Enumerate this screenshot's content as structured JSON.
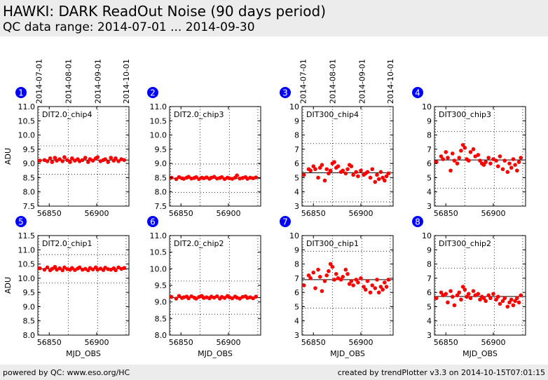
{
  "header": {
    "title": "HAWKI: DARK ReadOut Noise (90 days period)",
    "subtitle": "QC data range: 2014-07-01 ... 2014-09-30"
  },
  "footer": {
    "left": "powered by QC: www.eso.org/HC",
    "right": "created by trendPlotter v3.3 on 2014-10-15T07:01:15"
  },
  "colors": {
    "points": "#ff0000",
    "background": "#ffffff",
    "bands": "#ececec",
    "markers": "#0000ff"
  },
  "chart_data": {
    "type": "scatter",
    "xlabel": "MJD_OBS",
    "ylabel": "ADU",
    "xlim": [
      56838,
      56934
    ],
    "xticks": [
      56850,
      56900
    ],
    "date_ticks": [
      {
        "label": "2014-07-01",
        "x": 56839
      },
      {
        "label": "2014-08-01",
        "x": 56870
      },
      {
        "label": "2014-09-01",
        "x": 56901
      },
      {
        "label": "2014-10-01",
        "x": 56931
      }
    ],
    "panels": [
      {
        "number": "1",
        "label": "DIT2.0_chip4",
        "ylim": [
          7.5,
          11.0
        ],
        "yticks": [
          7.5,
          8.0,
          8.5,
          9.0,
          9.5,
          10.0,
          10.5,
          11.0
        ],
        "mean": 9.12,
        "dotted": [
          8.62,
          9.62
        ],
        "x": [
          56840,
          56845,
          56848,
          56851,
          56853,
          56856,
          56858,
          56861,
          56864,
          56866,
          56869,
          56872,
          56874,
          56877,
          56880,
          56882,
          56885,
          56888,
          56891,
          56893,
          56896,
          56899,
          56901,
          56904,
          56907,
          56909,
          56912,
          56915,
          56918,
          56920,
          56923,
          56926,
          56929
        ],
        "y": [
          9.1,
          9.12,
          9.08,
          9.18,
          9.05,
          9.2,
          9.1,
          9.15,
          9.08,
          9.22,
          9.12,
          9.05,
          9.18,
          9.1,
          9.15,
          9.08,
          9.12,
          9.2,
          9.05,
          9.15,
          9.1,
          9.18,
          9.22,
          9.08,
          9.12,
          9.15,
          9.05,
          9.2,
          9.1,
          9.18,
          9.08,
          9.15,
          9.12
        ]
      },
      {
        "number": "2",
        "label": "DIT2.0_chip3",
        "ylim": [
          7.5,
          11.0
        ],
        "yticks": [
          7.5,
          8.0,
          8.5,
          9.0,
          9.5,
          10.0,
          10.5,
          11.0
        ],
        "mean": 8.48,
        "dotted": [
          7.98,
          8.98
        ],
        "x": [
          56840,
          56845,
          56848,
          56851,
          56853,
          56856,
          56858,
          56861,
          56864,
          56866,
          56869,
          56872,
          56874,
          56877,
          56880,
          56882,
          56885,
          56888,
          56891,
          56893,
          56896,
          56899,
          56901,
          56904,
          56907,
          56909,
          56912,
          56915,
          56918,
          56920,
          56923,
          56926,
          56929
        ],
        "y": [
          8.5,
          8.45,
          8.52,
          8.48,
          8.46,
          8.5,
          8.53,
          8.47,
          8.49,
          8.52,
          8.45,
          8.5,
          8.48,
          8.51,
          8.46,
          8.5,
          8.53,
          8.47,
          8.49,
          8.52,
          8.45,
          8.5,
          8.48,
          8.46,
          8.5,
          8.58,
          8.47,
          8.49,
          8.52,
          8.46,
          8.5,
          8.48,
          8.51
        ]
      },
      {
        "number": "3",
        "label": "DIT300_chip4",
        "ylim": [
          3.0,
          10.0
        ],
        "yticks": [
          3,
          4,
          5,
          6,
          7,
          8,
          9,
          10
        ],
        "mean": 5.35,
        "dotted": [
          3.3,
          7.4
        ],
        "x": [
          56840,
          56845,
          56847,
          56850,
          56852,
          56855,
          56857,
          56859,
          56862,
          56864,
          56866,
          56868,
          56870,
          56872,
          56874,
          56876,
          56879,
          56881,
          56884,
          56886,
          56888,
          56890,
          56892,
          56895,
          56897,
          56900,
          56903,
          56905,
          56907,
          56910,
          56912,
          56915,
          56917,
          56919,
          56921,
          56923,
          56925,
          56927,
          56929
        ],
        "y": [
          5.2,
          5.6,
          5.5,
          5.8,
          5.6,
          5.0,
          5.7,
          5.9,
          4.8,
          5.6,
          5.3,
          5.5,
          6.0,
          6.1,
          5.7,
          5.8,
          5.4,
          5.5,
          5.3,
          5.6,
          5.9,
          5.8,
          5.2,
          5.4,
          5.1,
          5.5,
          5.2,
          5.3,
          5.4,
          5.0,
          5.6,
          4.7,
          5.2,
          4.9,
          5.4,
          5.0,
          4.8,
          5.1,
          5.3
        ]
      },
      {
        "number": "4",
        "label": "DIT300_chip3",
        "ylim": [
          3.0,
          10.0
        ],
        "yticks": [
          3,
          4,
          5,
          6,
          7,
          8,
          9,
          10
        ],
        "mean": 6.25,
        "dotted": [
          4.25,
          8.25
        ],
        "x": [
          56840,
          56845,
          56847,
          56850,
          56852,
          56855,
          56857,
          56859,
          56862,
          56864,
          56866,
          56868,
          56870,
          56872,
          56874,
          56876,
          56879,
          56881,
          56884,
          56886,
          56888,
          56890,
          56892,
          56895,
          56897,
          56900,
          56903,
          56905,
          56907,
          56910,
          56912,
          56915,
          56917,
          56919,
          56921,
          56923,
          56925,
          56927,
          56929
        ],
        "y": [
          6.1,
          6.5,
          6.3,
          6.8,
          6.4,
          5.5,
          6.7,
          6.2,
          6.0,
          6.4,
          6.9,
          7.3,
          7.1,
          6.3,
          6.2,
          6.8,
          7.0,
          6.5,
          6.6,
          6.2,
          6.0,
          5.9,
          6.1,
          6.4,
          6.0,
          6.3,
          6.2,
          5.8,
          6.5,
          5.6,
          6.2,
          5.4,
          6.0,
          5.7,
          6.3,
          5.9,
          5.5,
          6.1,
          6.4
        ]
      },
      {
        "number": "5",
        "label": "DIT2.0_chip1",
        "ylim": [
          8.0,
          11.5
        ],
        "yticks": [
          8.0,
          8.5,
          9.0,
          9.5,
          10.0,
          10.5,
          11.0,
          11.5
        ],
        "mean": 10.33,
        "dotted": [
          9.83,
          10.83
        ],
        "x": [
          56840,
          56845,
          56848,
          56851,
          56853,
          56856,
          56858,
          56861,
          56864,
          56866,
          56869,
          56872,
          56874,
          56877,
          56880,
          56882,
          56885,
          56888,
          56891,
          56893,
          56896,
          56899,
          56901,
          56904,
          56907,
          56909,
          56912,
          56915,
          56918,
          56920,
          56923,
          56926,
          56929
        ],
        "y": [
          10.35,
          10.3,
          10.38,
          10.28,
          10.33,
          10.4,
          10.3,
          10.35,
          10.28,
          10.38,
          10.32,
          10.3,
          10.36,
          10.29,
          10.34,
          10.38,
          10.3,
          10.33,
          10.28,
          10.36,
          10.31,
          10.38,
          10.3,
          10.34,
          10.29,
          10.37,
          10.32,
          10.3,
          10.35,
          10.28,
          10.38,
          10.33,
          10.36
        ]
      },
      {
        "number": "6",
        "label": "DIT2.0_chip2",
        "ylim": [
          8.0,
          11.0
        ],
        "yticks": [
          8.0,
          8.5,
          9.0,
          9.5,
          10.0,
          10.5,
          11.0
        ],
        "mean": 9.13,
        "dotted": [
          8.63,
          9.63
        ],
        "x": [
          56840,
          56845,
          56848,
          56851,
          56853,
          56856,
          56858,
          56861,
          56864,
          56866,
          56869,
          56872,
          56874,
          56877,
          56880,
          56882,
          56885,
          56888,
          56891,
          56893,
          56896,
          56899,
          56901,
          56904,
          56907,
          56909,
          56912,
          56915,
          56918,
          56920,
          56923,
          56926,
          56929
        ],
        "y": [
          9.15,
          9.1,
          9.18,
          9.12,
          9.14,
          9.16,
          9.11,
          9.17,
          9.13,
          9.1,
          9.15,
          9.18,
          9.12,
          9.14,
          9.11,
          9.16,
          9.13,
          9.17,
          9.1,
          9.15,
          9.12,
          9.18,
          9.14,
          9.11,
          9.16,
          9.13,
          9.1,
          9.15,
          9.17,
          9.12,
          9.14,
          9.11,
          9.16
        ]
      },
      {
        "number": "7",
        "label": "DIT300_chip1",
        "ylim": [
          3.0,
          10.0
        ],
        "yticks": [
          3,
          4,
          5,
          6,
          7,
          8,
          9,
          10
        ],
        "mean": 6.9,
        "dotted": [
          4.9,
          8.9
        ],
        "x": [
          56840,
          56845,
          56847,
          56850,
          56852,
          56855,
          56857,
          56859,
          56862,
          56864,
          56866,
          56868,
          56870,
          56872,
          56874,
          56876,
          56879,
          56881,
          56884,
          56886,
          56888,
          56890,
          56892,
          56895,
          56897,
          56900,
          56903,
          56905,
          56907,
          56910,
          56912,
          56915,
          56917,
          56919,
          56921,
          56923,
          56925,
          56927,
          56929
        ],
        "y": [
          6.5,
          7.2,
          7.0,
          7.4,
          6.3,
          7.6,
          7.1,
          6.1,
          6.8,
          7.2,
          7.5,
          8.0,
          7.8,
          6.9,
          7.3,
          7.0,
          6.9,
          7.1,
          7.6,
          7.3,
          6.6,
          6.8,
          6.5,
          6.9,
          6.7,
          7.0,
          6.4,
          6.2,
          6.8,
          6.0,
          6.5,
          6.3,
          6.9,
          6.0,
          6.4,
          6.2,
          6.7,
          6.4,
          6.9
        ]
      },
      {
        "number": "8",
        "label": "DIT300_chip2",
        "ylim": [
          3.0,
          10.0
        ],
        "yticks": [
          3,
          4,
          5,
          6,
          7,
          8,
          9,
          10
        ],
        "mean": 5.72,
        "dotted": [
          3.7,
          7.7
        ],
        "x": [
          56840,
          56845,
          56847,
          56850,
          56852,
          56855,
          56857,
          56859,
          56862,
          56864,
          56866,
          56868,
          56870,
          56872,
          56874,
          56876,
          56879,
          56881,
          56884,
          56886,
          56888,
          56890,
          56892,
          56895,
          56897,
          56900,
          56903,
          56905,
          56907,
          56910,
          56912,
          56915,
          56917,
          56919,
          56921,
          56923,
          56925,
          56927,
          56929
        ],
        "y": [
          5.6,
          6.0,
          5.8,
          5.9,
          5.3,
          6.1,
          5.7,
          5.1,
          5.8,
          6.0,
          5.5,
          6.4,
          6.2,
          5.7,
          5.9,
          5.6,
          6.1,
          5.8,
          5.9,
          5.5,
          5.7,
          5.6,
          5.4,
          5.8,
          5.6,
          5.9,
          5.5,
          5.7,
          5.2,
          5.4,
          5.6,
          5.0,
          5.3,
          5.5,
          5.1,
          5.4,
          5.6,
          5.3,
          5.8
        ]
      }
    ]
  }
}
